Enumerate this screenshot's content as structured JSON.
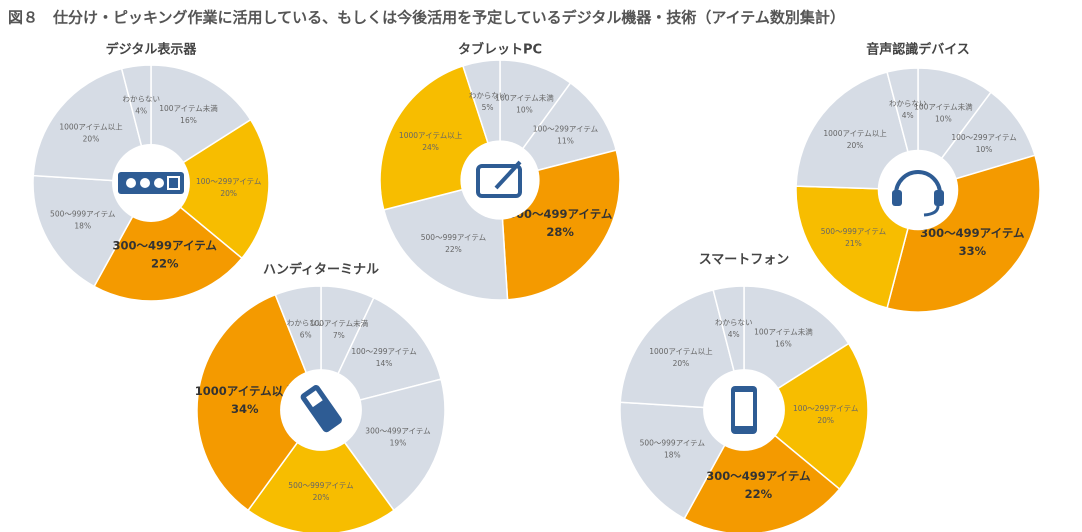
{
  "title": "図８　仕分け・ピッキング作業に活用している、もしくは今後活用を予定しているデジタル機器・技術（アイテム数別集計）",
  "chart_data": [
    {
      "type": "pie",
      "title": "デジタル表示器",
      "categories": [
        "100アイテム未満",
        "100～299アイテム",
        "300～499アイテム",
        "500～999アイテム",
        "1000アイテム以上",
        "わからない"
      ],
      "values": [
        16,
        20,
        22,
        18,
        20,
        4
      ],
      "value_labels": [
        "16%",
        "20%",
        "22%",
        "18%",
        "20%",
        "4%"
      ],
      "colors": [
        "#d6dce5",
        "#f7bd00",
        "#f49a00",
        "#d6dce5",
        "#d6dce5",
        "#d6dce5"
      ],
      "emphasized": 2
    },
    {
      "type": "pie",
      "title": "タブレットPC",
      "categories": [
        "100アイテム未満",
        "100～299アイテム",
        "300～499アイテム",
        "500～999アイテム",
        "1000アイテム以上",
        "わからない"
      ],
      "values": [
        10,
        11,
        28,
        22,
        24,
        5
      ],
      "value_labels": [
        "10%",
        "11%",
        "28%",
        "22%",
        "24%",
        "5%"
      ],
      "colors": [
        "#d6dce5",
        "#d6dce5",
        "#f49a00",
        "#d6dce5",
        "#f7bd00",
        "#d6dce5"
      ],
      "emphasized": 2
    },
    {
      "type": "pie",
      "title": "音声認識デバイス",
      "categories": [
        "100アイテム未満",
        "100～299アイテム",
        "300～499アイテム",
        "500～999アイテム",
        "1000アイテム以上",
        "わからない"
      ],
      "values": [
        10,
        10,
        33,
        21,
        20,
        4
      ],
      "value_labels": [
        "10%",
        "10%",
        "33%",
        "21%",
        "20%",
        "4%"
      ],
      "colors": [
        "#d6dce5",
        "#d6dce5",
        "#f49a00",
        "#f7bd00",
        "#d6dce5",
        "#d6dce5"
      ],
      "emphasized": 2
    },
    {
      "type": "pie",
      "title": "ハンディターミナル",
      "categories": [
        "100アイテム未満",
        "100～299アイテム",
        "300～499アイテム",
        "500～999アイテム",
        "1000アイテム以上",
        "わからない"
      ],
      "values": [
        7,
        14,
        19,
        20,
        34,
        6
      ],
      "value_labels": [
        "7%",
        "14%",
        "19%",
        "20%",
        "34%",
        "6%"
      ],
      "colors": [
        "#d6dce5",
        "#d6dce5",
        "#d6dce5",
        "#f7bd00",
        "#f49a00",
        "#d6dce5"
      ],
      "emphasized": 4
    },
    {
      "type": "pie",
      "title": "スマートフォン",
      "categories": [
        "100アイテム未満",
        "100～299アイテム",
        "300～499アイテム",
        "500～999アイテム",
        "1000アイテム以上",
        "わからない"
      ],
      "values": [
        16,
        20,
        22,
        18,
        20,
        4
      ],
      "value_labels": [
        "16%",
        "20%",
        "22%",
        "18%",
        "20%",
        "4%"
      ],
      "colors": [
        "#d6dce5",
        "#f7bd00",
        "#f49a00",
        "#d6dce5",
        "#d6dce5",
        "#d6dce5"
      ],
      "emphasized": 2
    }
  ]
}
